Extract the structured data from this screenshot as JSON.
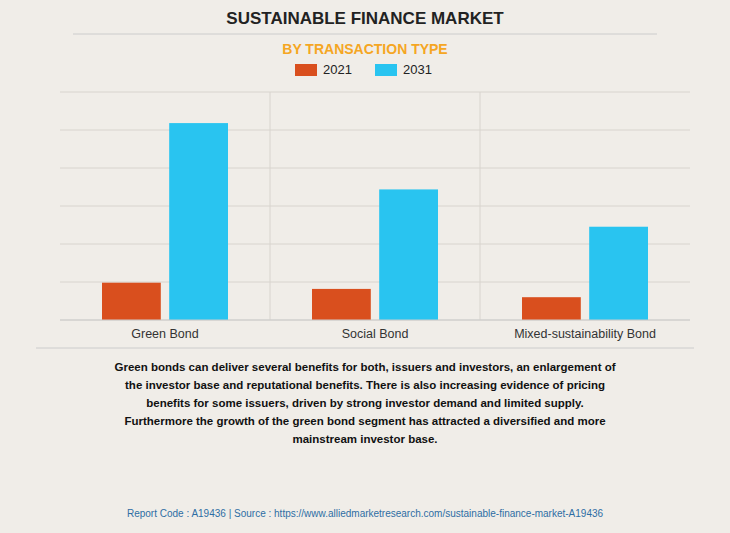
{
  "chart_data": {
    "type": "bar",
    "title": "SUSTAINABLE FINANCE MARKET",
    "subtitle": "BY TRANSACTION TYPE",
    "categories": [
      "Green Bond",
      "Social Bond",
      "Mixed-sustainability Bond"
    ],
    "series": [
      {
        "name": "2021",
        "color": "#d94f1e",
        "values": [
          18,
          15,
          11
        ]
      },
      {
        "name": "2031",
        "color": "#29c4f0",
        "values": [
          95,
          63,
          45
        ]
      }
    ],
    "ylim": [
      0,
      110
    ],
    "yticks": [
      0,
      18.333333333333332,
      36.666666666666664,
      55,
      73.33333333333333,
      91.66666666666666,
      110
    ],
    "grid": true,
    "legend": "top",
    "tick_labels": "x",
    "annotations": [
      "Green bonds can deliver several benefits for both, issuers and investors, an enlargement of\nthe investor base and reputational benefits. There is also increasing evidence of pricing\nbenefits for some issuers, driven by strong investor demand and limited supply.\nFurthermore the growth of the green bond segment has attracted a diversified and more\nmainstream investor base.",
      "Report Code : A19436  |  Source : https://www.alliedmarketresearch.com/sustainable-finance-market-A19436"
    ]
  }
}
